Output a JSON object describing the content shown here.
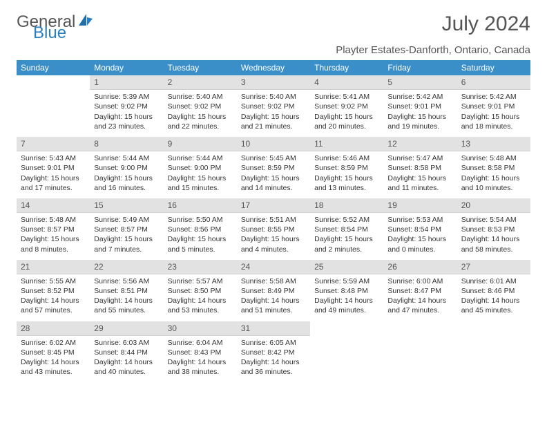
{
  "logo": {
    "part1": "General",
    "part2": "Blue"
  },
  "title": "July 2024",
  "location": "Playter Estates-Danforth, Ontario, Canada",
  "colors": {
    "header_bg": "#3b8fc9",
    "header_text": "#ffffff",
    "daynum_bg": "#e2e2e2",
    "body_text": "#333333",
    "title_text": "#555555",
    "logo_blue": "#2a7fbf"
  },
  "day_headers": [
    "Sunday",
    "Monday",
    "Tuesday",
    "Wednesday",
    "Thursday",
    "Friday",
    "Saturday"
  ],
  "weeks": [
    [
      null,
      {
        "n": "1",
        "sr": "Sunrise: 5:39 AM",
        "ss": "Sunset: 9:02 PM",
        "d1": "Daylight: 15 hours",
        "d2": "and 23 minutes."
      },
      {
        "n": "2",
        "sr": "Sunrise: 5:40 AM",
        "ss": "Sunset: 9:02 PM",
        "d1": "Daylight: 15 hours",
        "d2": "and 22 minutes."
      },
      {
        "n": "3",
        "sr": "Sunrise: 5:40 AM",
        "ss": "Sunset: 9:02 PM",
        "d1": "Daylight: 15 hours",
        "d2": "and 21 minutes."
      },
      {
        "n": "4",
        "sr": "Sunrise: 5:41 AM",
        "ss": "Sunset: 9:02 PM",
        "d1": "Daylight: 15 hours",
        "d2": "and 20 minutes."
      },
      {
        "n": "5",
        "sr": "Sunrise: 5:42 AM",
        "ss": "Sunset: 9:01 PM",
        "d1": "Daylight: 15 hours",
        "d2": "and 19 minutes."
      },
      {
        "n": "6",
        "sr": "Sunrise: 5:42 AM",
        "ss": "Sunset: 9:01 PM",
        "d1": "Daylight: 15 hours",
        "d2": "and 18 minutes."
      }
    ],
    [
      {
        "n": "7",
        "sr": "Sunrise: 5:43 AM",
        "ss": "Sunset: 9:01 PM",
        "d1": "Daylight: 15 hours",
        "d2": "and 17 minutes."
      },
      {
        "n": "8",
        "sr": "Sunrise: 5:44 AM",
        "ss": "Sunset: 9:00 PM",
        "d1": "Daylight: 15 hours",
        "d2": "and 16 minutes."
      },
      {
        "n": "9",
        "sr": "Sunrise: 5:44 AM",
        "ss": "Sunset: 9:00 PM",
        "d1": "Daylight: 15 hours",
        "d2": "and 15 minutes."
      },
      {
        "n": "10",
        "sr": "Sunrise: 5:45 AM",
        "ss": "Sunset: 8:59 PM",
        "d1": "Daylight: 15 hours",
        "d2": "and 14 minutes."
      },
      {
        "n": "11",
        "sr": "Sunrise: 5:46 AM",
        "ss": "Sunset: 8:59 PM",
        "d1": "Daylight: 15 hours",
        "d2": "and 13 minutes."
      },
      {
        "n": "12",
        "sr": "Sunrise: 5:47 AM",
        "ss": "Sunset: 8:58 PM",
        "d1": "Daylight: 15 hours",
        "d2": "and 11 minutes."
      },
      {
        "n": "13",
        "sr": "Sunrise: 5:48 AM",
        "ss": "Sunset: 8:58 PM",
        "d1": "Daylight: 15 hours",
        "d2": "and 10 minutes."
      }
    ],
    [
      {
        "n": "14",
        "sr": "Sunrise: 5:48 AM",
        "ss": "Sunset: 8:57 PM",
        "d1": "Daylight: 15 hours",
        "d2": "and 8 minutes."
      },
      {
        "n": "15",
        "sr": "Sunrise: 5:49 AM",
        "ss": "Sunset: 8:57 PM",
        "d1": "Daylight: 15 hours",
        "d2": "and 7 minutes."
      },
      {
        "n": "16",
        "sr": "Sunrise: 5:50 AM",
        "ss": "Sunset: 8:56 PM",
        "d1": "Daylight: 15 hours",
        "d2": "and 5 minutes."
      },
      {
        "n": "17",
        "sr": "Sunrise: 5:51 AM",
        "ss": "Sunset: 8:55 PM",
        "d1": "Daylight: 15 hours",
        "d2": "and 4 minutes."
      },
      {
        "n": "18",
        "sr": "Sunrise: 5:52 AM",
        "ss": "Sunset: 8:54 PM",
        "d1": "Daylight: 15 hours",
        "d2": "and 2 minutes."
      },
      {
        "n": "19",
        "sr": "Sunrise: 5:53 AM",
        "ss": "Sunset: 8:54 PM",
        "d1": "Daylight: 15 hours",
        "d2": "and 0 minutes."
      },
      {
        "n": "20",
        "sr": "Sunrise: 5:54 AM",
        "ss": "Sunset: 8:53 PM",
        "d1": "Daylight: 14 hours",
        "d2": "and 58 minutes."
      }
    ],
    [
      {
        "n": "21",
        "sr": "Sunrise: 5:55 AM",
        "ss": "Sunset: 8:52 PM",
        "d1": "Daylight: 14 hours",
        "d2": "and 57 minutes."
      },
      {
        "n": "22",
        "sr": "Sunrise: 5:56 AM",
        "ss": "Sunset: 8:51 PM",
        "d1": "Daylight: 14 hours",
        "d2": "and 55 minutes."
      },
      {
        "n": "23",
        "sr": "Sunrise: 5:57 AM",
        "ss": "Sunset: 8:50 PM",
        "d1": "Daylight: 14 hours",
        "d2": "and 53 minutes."
      },
      {
        "n": "24",
        "sr": "Sunrise: 5:58 AM",
        "ss": "Sunset: 8:49 PM",
        "d1": "Daylight: 14 hours",
        "d2": "and 51 minutes."
      },
      {
        "n": "25",
        "sr": "Sunrise: 5:59 AM",
        "ss": "Sunset: 8:48 PM",
        "d1": "Daylight: 14 hours",
        "d2": "and 49 minutes."
      },
      {
        "n": "26",
        "sr": "Sunrise: 6:00 AM",
        "ss": "Sunset: 8:47 PM",
        "d1": "Daylight: 14 hours",
        "d2": "and 47 minutes."
      },
      {
        "n": "27",
        "sr": "Sunrise: 6:01 AM",
        "ss": "Sunset: 8:46 PM",
        "d1": "Daylight: 14 hours",
        "d2": "and 45 minutes."
      }
    ],
    [
      {
        "n": "28",
        "sr": "Sunrise: 6:02 AM",
        "ss": "Sunset: 8:45 PM",
        "d1": "Daylight: 14 hours",
        "d2": "and 43 minutes."
      },
      {
        "n": "29",
        "sr": "Sunrise: 6:03 AM",
        "ss": "Sunset: 8:44 PM",
        "d1": "Daylight: 14 hours",
        "d2": "and 40 minutes."
      },
      {
        "n": "30",
        "sr": "Sunrise: 6:04 AM",
        "ss": "Sunset: 8:43 PM",
        "d1": "Daylight: 14 hours",
        "d2": "and 38 minutes."
      },
      {
        "n": "31",
        "sr": "Sunrise: 6:05 AM",
        "ss": "Sunset: 8:42 PM",
        "d1": "Daylight: 14 hours",
        "d2": "and 36 minutes."
      },
      null,
      null,
      null
    ]
  ]
}
